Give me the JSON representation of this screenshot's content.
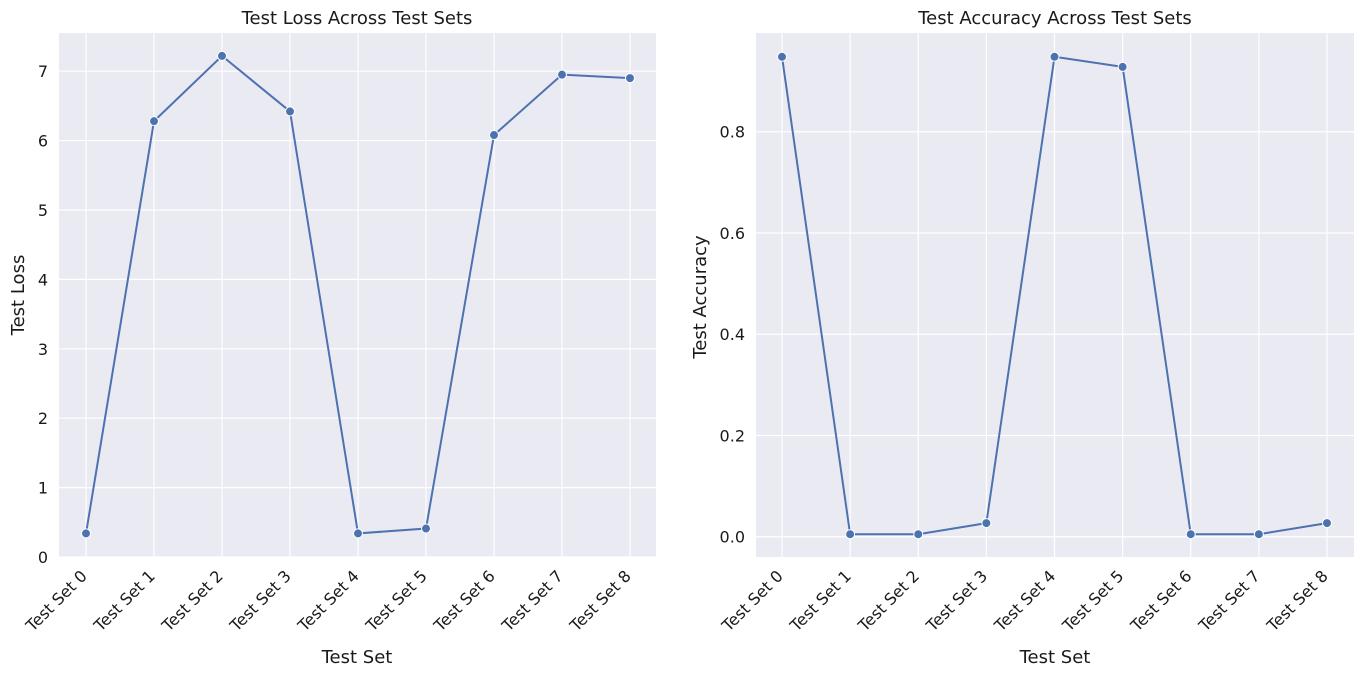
{
  "chart_data": [
    {
      "type": "line",
      "title": "Test Loss Across Test Sets",
      "xlabel": "Test Set",
      "ylabel": "Test Loss",
      "categories": [
        "Test Set 0",
        "Test Set 1",
        "Test Set 2",
        "Test Set 3",
        "Test Set 4",
        "Test Set 5",
        "Test Set 6",
        "Test Set 7",
        "Test Set 8"
      ],
      "series": [
        {
          "values": [
            0.34,
            6.28,
            7.22,
            6.42,
            0.34,
            0.41,
            6.08,
            6.95,
            6.9
          ]
        }
      ],
      "ylim": [
        0,
        7.55
      ],
      "yticks": [
        0,
        1,
        2,
        3,
        4,
        5,
        6,
        7
      ],
      "ytick_labels": [
        "0",
        "1",
        "2",
        "3",
        "4",
        "5",
        "6",
        "7"
      ],
      "grid": true,
      "style": {
        "line_color": "#4c72b0",
        "background": "#eaeaf2",
        "grid_color": "#ffffff"
      }
    },
    {
      "type": "line",
      "title": "Test Accuracy Across Test Sets",
      "xlabel": "Test Set",
      "ylabel": "Test Accuracy",
      "categories": [
        "Test Set 0",
        "Test Set 1",
        "Test Set 2",
        "Test Set 3",
        "Test Set 4",
        "Test Set 5",
        "Test Set 6",
        "Test Set 7",
        "Test Set 8"
      ],
      "series": [
        {
          "values": [
            0.948,
            0.005,
            0.005,
            0.027,
            0.948,
            0.928,
            0.005,
            0.005,
            0.027
          ]
        }
      ],
      "ylim": [
        -0.04,
        0.995
      ],
      "yticks": [
        0,
        0.2,
        0.4,
        0.6,
        0.8
      ],
      "ytick_labels": [
        "0.0",
        "0.2",
        "0.4",
        "0.6",
        "0.8"
      ],
      "grid": true,
      "style": {
        "line_color": "#4c72b0",
        "background": "#eaeaf2",
        "grid_color": "#ffffff"
      }
    }
  ]
}
